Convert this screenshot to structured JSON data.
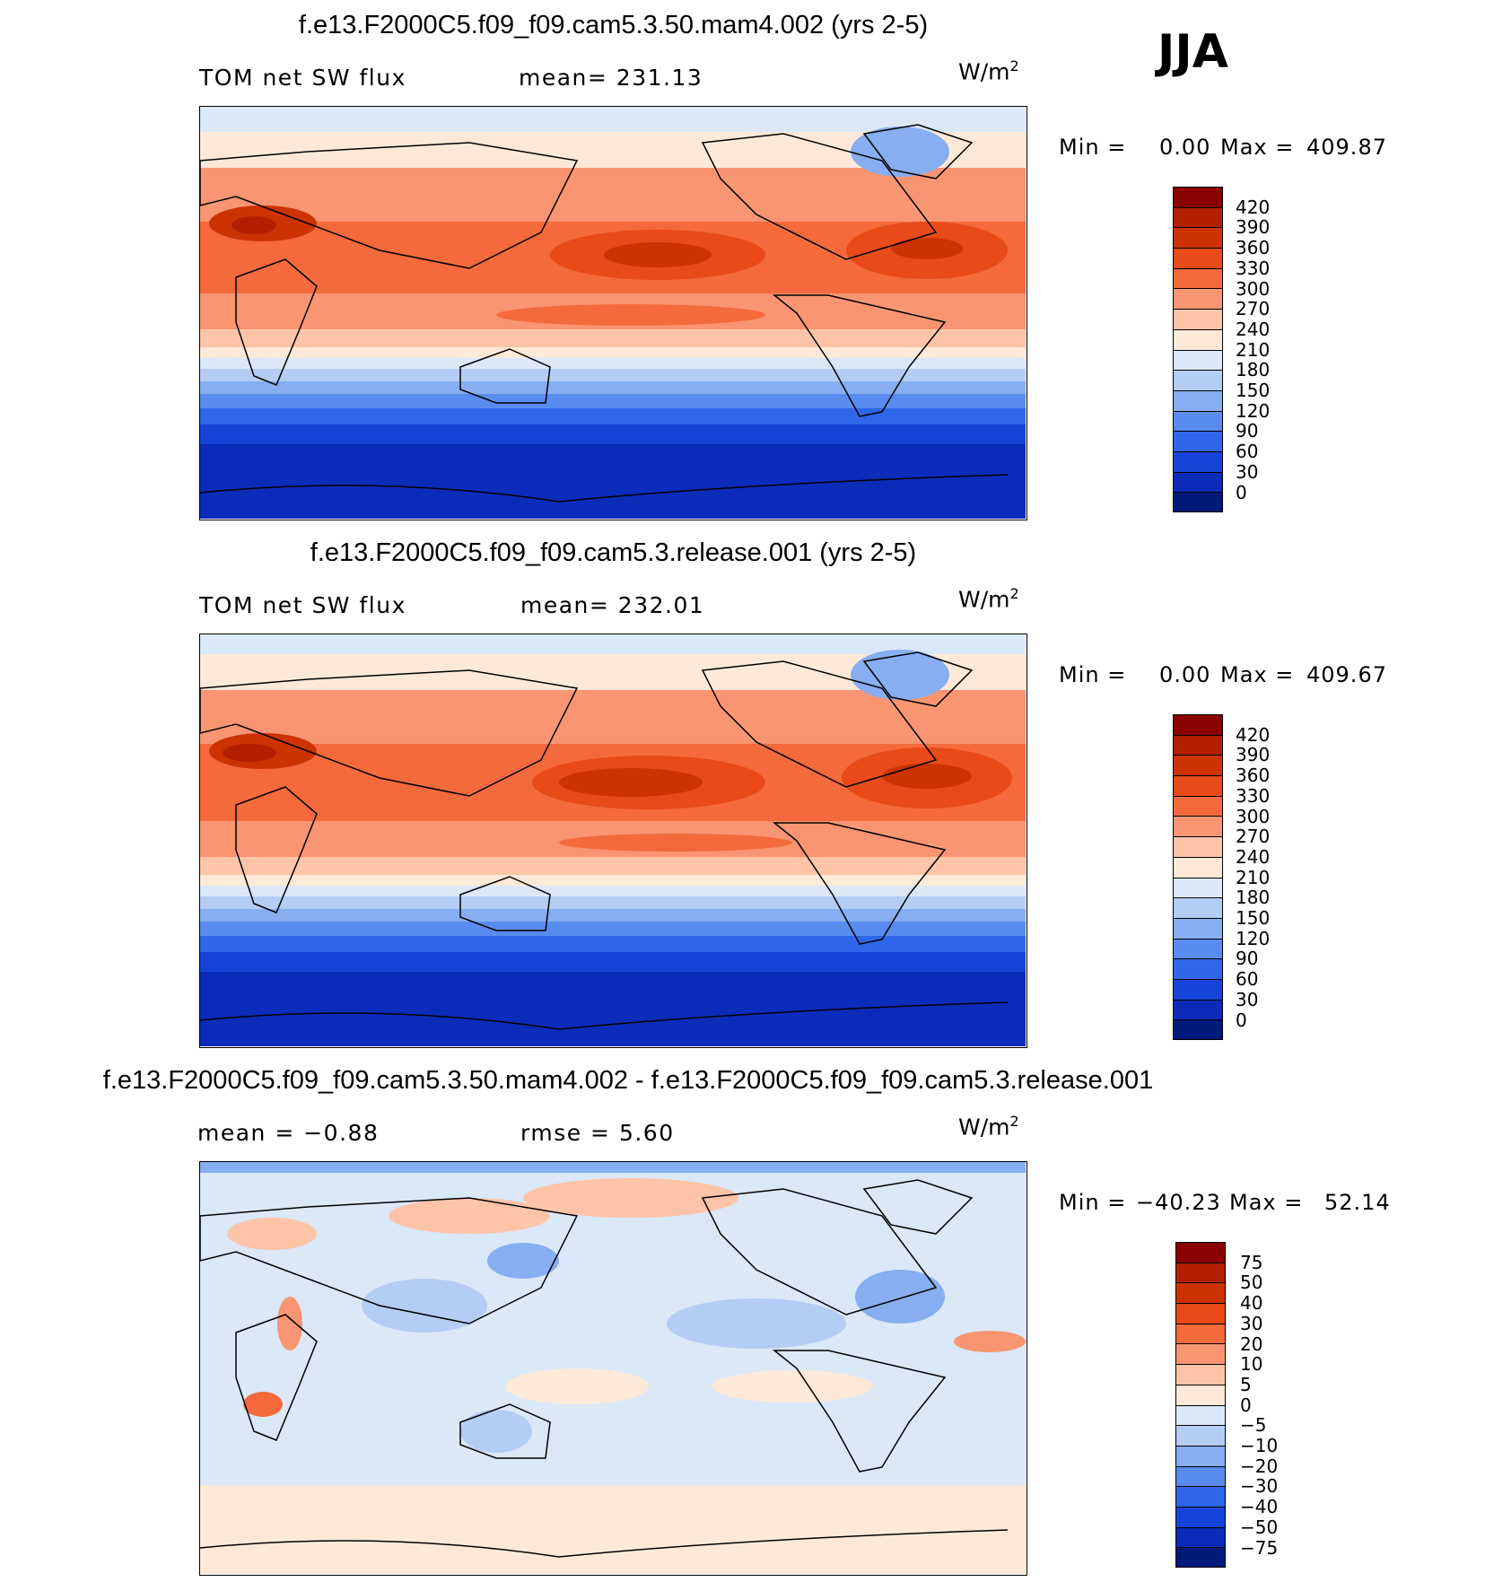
{
  "season": "JJA",
  "units_base": "W/m",
  "units_sup": "2",
  "panels": [
    {
      "title": "f.e13.F2000C5.f09_f09.cam5.3.50.mam4.002 (yrs 2-5)",
      "left_label": "TOM  net  SW  flux",
      "center_label": "mean=  231.13",
      "min_label": "Min  =",
      "min_value": "0.00",
      "max_label": "Max  =",
      "max_value": "409.87"
    },
    {
      "title": "f.e13.F2000C5.f09_f09.cam5.3.release.001 (yrs 2-5)",
      "left_label": "TOM  net  SW  flux",
      "center_label": "mean=  232.01",
      "min_label": "Min  =",
      "min_value": "0.00",
      "max_label": "Max  =",
      "max_value": "409.67"
    },
    {
      "title": "f.e13.F2000C5.f09_f09.cam5.3.50.mam4.002 - f.e13.F2000C5.f09_f09.cam5.3.release.001",
      "left_label": "mean  =    −0.88",
      "center_label": "rmse  =     5.60",
      "min_label": "Min  =",
      "min_value": "−40.23",
      "max_label": "Max  =",
      "max_value": "52.14"
    }
  ],
  "colorbar_flux": {
    "levels": [
      "420",
      "390",
      "360",
      "330",
      "300",
      "270",
      "240",
      "210",
      "180",
      "150",
      "120",
      "90",
      "60",
      "30",
      "0"
    ],
    "colors": [
      "#8b0000",
      "#b22000",
      "#cc3300",
      "#e84a18",
      "#f46a3c",
      "#f99572",
      "#fdc4a8",
      "#fee9d8",
      "#dbe8f8",
      "#b4cdf4",
      "#86aef0",
      "#5a8cf0",
      "#2f67ea",
      "#1744d8",
      "#0a2cb8",
      "#001a7a"
    ]
  },
  "colorbar_diff": {
    "levels": [
      "75",
      "50",
      "40",
      "30",
      "20",
      "10",
      "5",
      "0",
      "−5",
      "−10",
      "−20",
      "−30",
      "−40",
      "−50",
      "−75"
    ],
    "colors": [
      "#8b0000",
      "#b22000",
      "#cc3300",
      "#e84a18",
      "#f46a3c",
      "#f99572",
      "#fdc4a8",
      "#fee9d8",
      "#dbe8f8",
      "#b4cdf4",
      "#86aef0",
      "#5a8cf0",
      "#2f67ea",
      "#1744d8",
      "#0a2cb8",
      "#001a7a"
    ]
  }
}
